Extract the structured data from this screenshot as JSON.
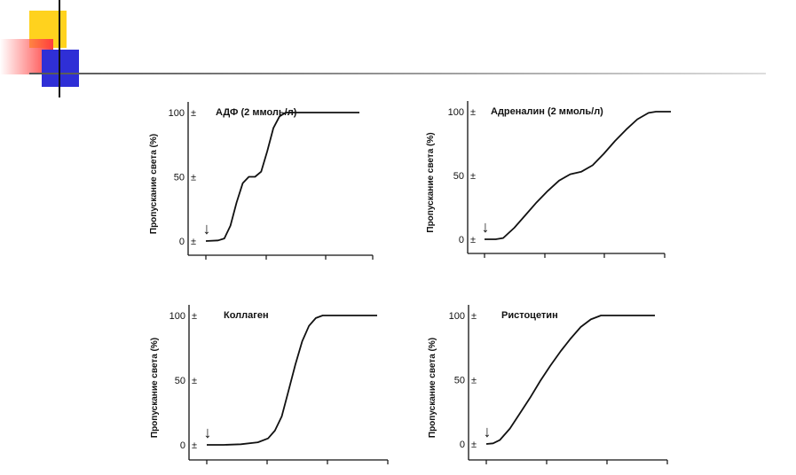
{
  "chart_data": [
    {
      "type": "line",
      "title": "АДФ (2 ммоль/л)",
      "ylabel": "Пропускание света (%)",
      "xlabel": "",
      "ylim": [
        0,
        100
      ],
      "yticks": [
        "100",
        "50",
        "0"
      ],
      "tick_marker": "±",
      "arrow": "↓",
      "x": [
        0,
        4,
        6,
        8,
        10,
        12,
        14,
        16,
        18,
        20,
        22,
        24,
        26,
        28,
        30,
        34,
        38,
        42,
        46,
        48,
        50
      ],
      "y": [
        0,
        0.5,
        2,
        12,
        30,
        45,
        50,
        50,
        54,
        70,
        88,
        97,
        100,
        100,
        100,
        100,
        100,
        100,
        100,
        100,
        100
      ]
    },
    {
      "type": "line",
      "title": "Адреналин (2 ммоль/л)",
      "ylabel": "Пропускание света (%)",
      "xlabel": "",
      "ylim": [
        0,
        100
      ],
      "yticks": [
        "100",
        "50",
        "0"
      ],
      "tick_marker": "±",
      "arrow": "↓",
      "x": [
        0,
        3,
        5,
        8,
        11,
        14,
        17,
        20,
        23,
        26,
        29,
        32,
        35,
        38,
        41,
        44,
        46,
        48,
        50
      ],
      "y": [
        0,
        0,
        1,
        9,
        19,
        29,
        38,
        46,
        51,
        53,
        58,
        67,
        77,
        86,
        94,
        99,
        100,
        100,
        100
      ]
    },
    {
      "type": "line",
      "title": "Коллаген",
      "ylabel": "Пропускание света (%)",
      "xlabel": "",
      "ylim": [
        0,
        100
      ],
      "yticks": [
        "100",
        "50",
        "0"
      ],
      "tick_marker": "±",
      "arrow": "↓",
      "x": [
        0,
        5,
        10,
        15,
        18,
        20,
        22,
        24,
        26,
        28,
        30,
        32,
        34,
        36,
        40,
        44,
        48,
        50
      ],
      "y": [
        0,
        0,
        0.5,
        2,
        5,
        11,
        22,
        42,
        62,
        80,
        92,
        98,
        100,
        100,
        100,
        100,
        100,
        100
      ]
    },
    {
      "type": "line",
      "title": "Ристоцетин",
      "ylabel": "Пропускание света (%)",
      "xlabel": "",
      "ylim": [
        0,
        100
      ],
      "yticks": [
        "100",
        "50",
        "0"
      ],
      "tick_marker": "±",
      "arrow": "↓",
      "x": [
        0,
        2,
        4,
        7,
        10,
        13,
        16,
        19,
        22,
        25,
        28,
        31,
        34,
        37,
        40,
        44,
        48,
        50
      ],
      "y": [
        0,
        0.5,
        3,
        12,
        24,
        36,
        49,
        61,
        72,
        82,
        91,
        97,
        100,
        100,
        100,
        100,
        100,
        100
      ]
    }
  ]
}
